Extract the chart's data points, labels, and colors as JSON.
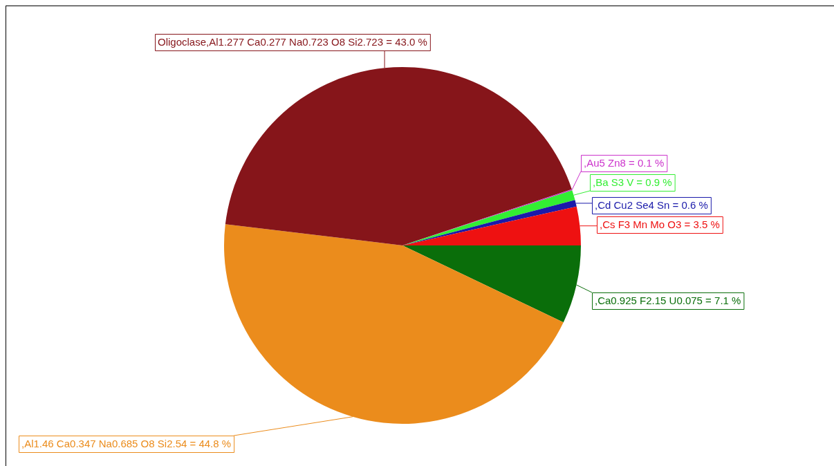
{
  "chart_data": {
    "type": "pie",
    "categories": [
      ",Ca0.925 F2.15 U0.075",
      ",Al1.46 Ca0.347 Na0.685 O8 Si2.54",
      "Oligoclase,Al1.277 Ca0.277 Na0.723 O8 Si2.723",
      ",Au5 Zn8",
      ",Ba S3 V",
      ",Cd Cu2 Se4 Sn",
      ",Cs F3 Mn Mo O3"
    ],
    "values": [
      7.1,
      44.8,
      43.0,
      0.1,
      0.9,
      0.6,
      3.5
    ],
    "value_labels": [
      "= 7.1 %",
      "= 44.8 %",
      "= 43.0 %",
      "= 0.1 %",
      "= 0.9 %",
      "= 0.6 %",
      "= 3.5 %"
    ],
    "colors": [
      "#0a6e0a",
      "#eb8c1c",
      "#86151a",
      "#cc33cc",
      "#33ee33",
      "#1a1aaa",
      "#ee1111"
    ],
    "legend": false
  }
}
